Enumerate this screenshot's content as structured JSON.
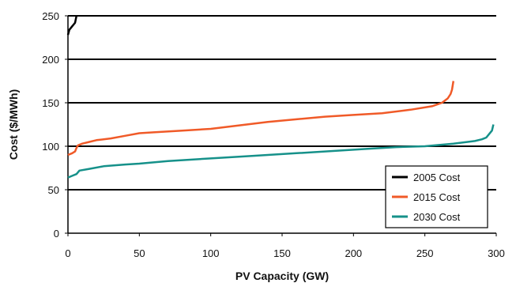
{
  "chart_data": {
    "type": "line",
    "xlabel": "PV Capacity (GW)",
    "ylabel": "Cost ($/MWh)",
    "xlim": [
      0,
      300
    ],
    "ylim": [
      0,
      250
    ],
    "x_ticks": [
      0,
      50,
      100,
      150,
      200,
      250,
      300
    ],
    "y_ticks": [
      0,
      50,
      100,
      150,
      200,
      250
    ],
    "grid": "horizontal",
    "legend_position": "bottom-right",
    "series": [
      {
        "name": "2005 Cost",
        "color": "#000000",
        "points": [
          [
            0,
            228
          ],
          [
            0.5,
            231
          ],
          [
            1,
            234
          ],
          [
            2,
            236
          ],
          [
            3,
            238
          ],
          [
            4,
            240
          ],
          [
            5,
            242
          ],
          [
            5.5,
            246
          ],
          [
            6,
            250
          ]
        ]
      },
      {
        "name": "2015 Cost",
        "color": "#f05a28",
        "points": [
          [
            0,
            90
          ],
          [
            3,
            92
          ],
          [
            5,
            94
          ],
          [
            6,
            98
          ],
          [
            7,
            101
          ],
          [
            10,
            103
          ],
          [
            15,
            105
          ],
          [
            20,
            107
          ],
          [
            30,
            109
          ],
          [
            40,
            112
          ],
          [
            50,
            115
          ],
          [
            60,
            116
          ],
          [
            80,
            118
          ],
          [
            100,
            120
          ],
          [
            120,
            124
          ],
          [
            140,
            128
          ],
          [
            160,
            131
          ],
          [
            180,
            134
          ],
          [
            200,
            136
          ],
          [
            220,
            138
          ],
          [
            240,
            142
          ],
          [
            255,
            146
          ],
          [
            262,
            150
          ],
          [
            266,
            155
          ],
          [
            268,
            160
          ],
          [
            269,
            165
          ],
          [
            270,
            175
          ]
        ]
      },
      {
        "name": "2030 Cost",
        "color": "#16918a",
        "points": [
          [
            0,
            64
          ],
          [
            3,
            66
          ],
          [
            6,
            68
          ],
          [
            8,
            72
          ],
          [
            15,
            74
          ],
          [
            25,
            77
          ],
          [
            40,
            79
          ],
          [
            50,
            80
          ],
          [
            70,
            83
          ],
          [
            100,
            86
          ],
          [
            130,
            89
          ],
          [
            160,
            92
          ],
          [
            190,
            95
          ],
          [
            210,
            97
          ],
          [
            230,
            99
          ],
          [
            250,
            100
          ],
          [
            270,
            103
          ],
          [
            285,
            106
          ],
          [
            290,
            108
          ],
          [
            293,
            110
          ],
          [
            295,
            114
          ],
          [
            297,
            118
          ],
          [
            298,
            125
          ]
        ]
      }
    ]
  }
}
